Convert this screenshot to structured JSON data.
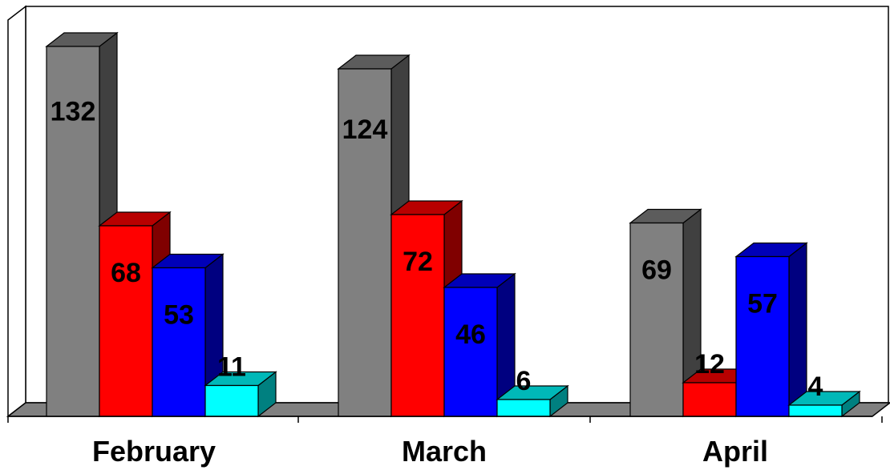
{
  "chart_data": {
    "type": "bar",
    "style": "3d-clustered",
    "categories": [
      "February",
      "March",
      "April"
    ],
    "series": [
      {
        "values": [
          132,
          124,
          69
        ],
        "color": "#808080"
      },
      {
        "values": [
          68,
          72,
          12
        ],
        "color": "#ff0000"
      },
      {
        "values": [
          53,
          46,
          57
        ],
        "color": "#0000ff"
      },
      {
        "values": [
          11,
          6,
          4
        ],
        "color": "#00ffff"
      }
    ],
    "value_labels": [
      [
        "132",
        "124",
        "69"
      ],
      [
        "68",
        "72",
        "12"
      ],
      [
        "53",
        "46",
        "57"
      ],
      [
        "11",
        "6",
        "4"
      ]
    ],
    "title": "",
    "xlabel": "",
    "ylabel": "",
    "ylim": [
      0,
      140
    ],
    "grid": false,
    "legend": "none"
  }
}
